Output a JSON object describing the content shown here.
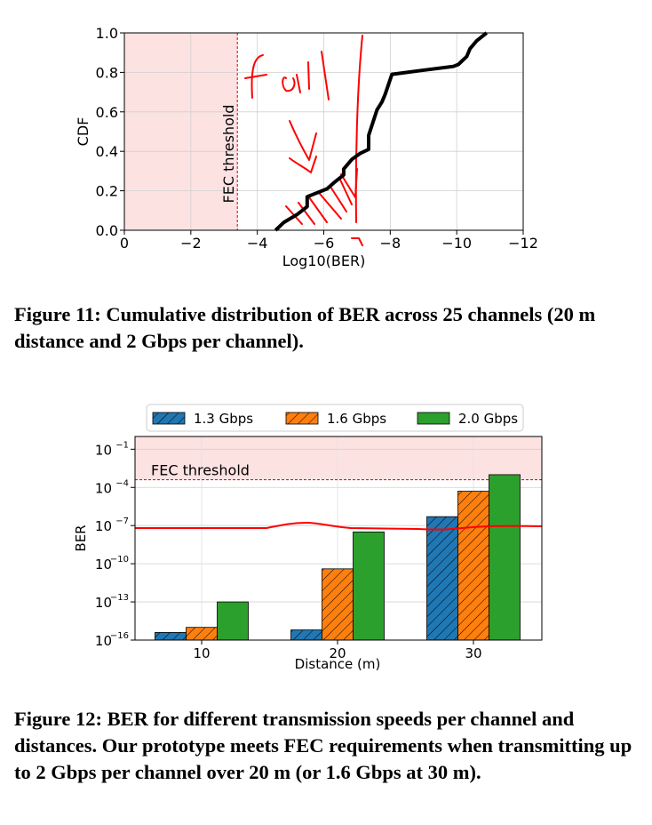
{
  "figure11": {
    "caption": "Figure 11: Cumulative distribution of BER across 25 channels (20 m distance and 2 Gbps per channel).",
    "annotation_text": "FEC threshold",
    "handwritten_text": "fail",
    "colors": {
      "curve": "#000000",
      "shade": "#fde2e2",
      "threshold": "#e00000",
      "ink": "#ff0000"
    },
    "chart_data": {
      "type": "line",
      "xlabel": "Log10(BER)",
      "ylabel": "CDF",
      "xlim": [
        0,
        -12
      ],
      "ylim": [
        0.0,
        1.0
      ],
      "x_ticks": [
        "0",
        "−2",
        "−4",
        "−6",
        "−8",
        "−10",
        "−12"
      ],
      "y_ticks": [
        "0.0",
        "0.2",
        "0.4",
        "0.6",
        "0.8",
        "1.0"
      ],
      "grid": true,
      "fec_threshold": -3.4,
      "shaded_region": [
        0,
        -3.4
      ],
      "series": [
        {
          "x": [
            -4.55,
            -4.8,
            -5.2,
            -5.5,
            -5.5,
            -6.1,
            -6.3,
            -6.6,
            -6.6,
            -6.85,
            -7.1,
            -7.35,
            -7.35,
            -7.6,
            -7.75,
            -7.85,
            -8.05,
            -8.95,
            -9.9,
            -10.05,
            -10.3,
            -10.4,
            -10.6,
            -10.9
          ],
          "y": [
            0.0,
            0.04,
            0.08,
            0.12,
            0.17,
            0.21,
            0.24,
            0.28,
            0.31,
            0.36,
            0.39,
            0.41,
            0.48,
            0.61,
            0.65,
            0.69,
            0.79,
            0.81,
            0.83,
            0.84,
            0.88,
            0.92,
            0.96,
            1.0
          ]
        }
      ]
    }
  },
  "figure12": {
    "caption": "Figure 12: BER for different transmission speeds per channel and distances. Our prototype meets FEC requirements when transmitting up to 2 Gbps per channel over 20 m (or 1.6 Gbps at 30 m).",
    "annotation_text": "FEC threshold",
    "colors": {
      "series": [
        "#1f77b4",
        "#ff7f0e",
        "#2ca02c"
      ],
      "shade": "#fde2e2",
      "threshold": "#e00000",
      "ink": "#ff0000"
    },
    "chart_data": {
      "type": "bar",
      "xlabel": "Distance (m)",
      "ylabel": "BER",
      "categories": [
        "10",
        "20",
        "30"
      ],
      "y_scale": "log",
      "ylim_exponent": [
        -16,
        0
      ],
      "y_ticks": [
        {
          "base": "10",
          "exp": "−1"
        },
        {
          "base": "10",
          "exp": "−4"
        },
        {
          "base": "10",
          "exp": "−7"
        },
        {
          "base": "10",
          "exp": "−10"
        },
        {
          "base": "10",
          "exp": "−13"
        },
        {
          "base": "10",
          "exp": "−16"
        }
      ],
      "grid": true,
      "legend_position": "top",
      "fec_threshold_exponent": -3.4,
      "series": [
        {
          "name": "1.3 Gbps",
          "exponents": [
            -15.4,
            -15.2,
            -6.3
          ]
        },
        {
          "name": "1.6 Gbps",
          "exponents": [
            -15.0,
            -10.4,
            -4.3
          ]
        },
        {
          "name": "2.0 Gbps",
          "exponents": [
            -13.0,
            -7.5,
            -3.0
          ]
        }
      ]
    }
  }
}
